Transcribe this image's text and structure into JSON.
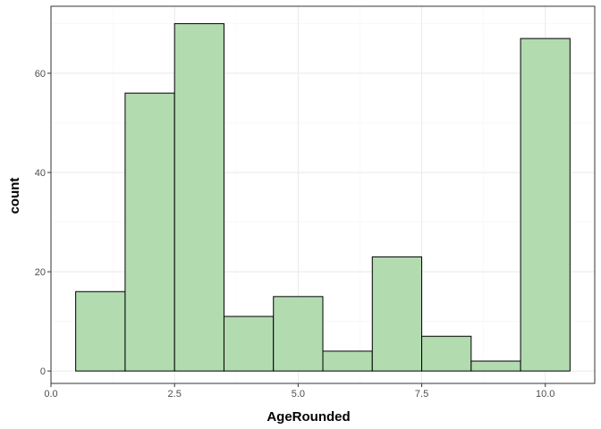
{
  "chart_data": {
    "type": "bar",
    "subtype": "histogram",
    "xlabel": "AgeRounded",
    "ylabel": "count",
    "bins": [
      {
        "x_min": 0.5,
        "x_max": 1.5,
        "count": 16
      },
      {
        "x_min": 1.5,
        "x_max": 2.5,
        "count": 56
      },
      {
        "x_min": 2.5,
        "x_max": 3.5,
        "count": 70
      },
      {
        "x_min": 3.5,
        "x_max": 4.5,
        "count": 11
      },
      {
        "x_min": 4.5,
        "x_max": 5.5,
        "count": 15
      },
      {
        "x_min": 5.5,
        "x_max": 6.5,
        "count": 4
      },
      {
        "x_min": 6.5,
        "x_max": 7.5,
        "count": 23
      },
      {
        "x_min": 7.5,
        "x_max": 8.5,
        "count": 7
      },
      {
        "x_min": 8.5,
        "x_max": 9.5,
        "count": 2
      },
      {
        "x_min": 9.5,
        "x_max": 10.5,
        "count": 67
      }
    ],
    "xlim": [
      0,
      11
    ],
    "ylim": [
      -2.5,
      73.5
    ],
    "x_ticks": [
      0,
      2.5,
      5,
      7.5,
      10
    ],
    "x_tick_labels": [
      "0.0",
      "2.5",
      "5.0",
      "7.5",
      "10.0"
    ],
    "y_ticks": [
      0,
      20,
      40,
      60
    ],
    "y_tick_labels": [
      "0",
      "20",
      "40",
      "60"
    ],
    "grid": true,
    "colors": {
      "bar_fill": "#b2dbb0",
      "bar_stroke": "#000000",
      "grid_major": "#ebebeb",
      "grid_minor": "#f5f5f5",
      "panel_border": "#333333"
    }
  }
}
